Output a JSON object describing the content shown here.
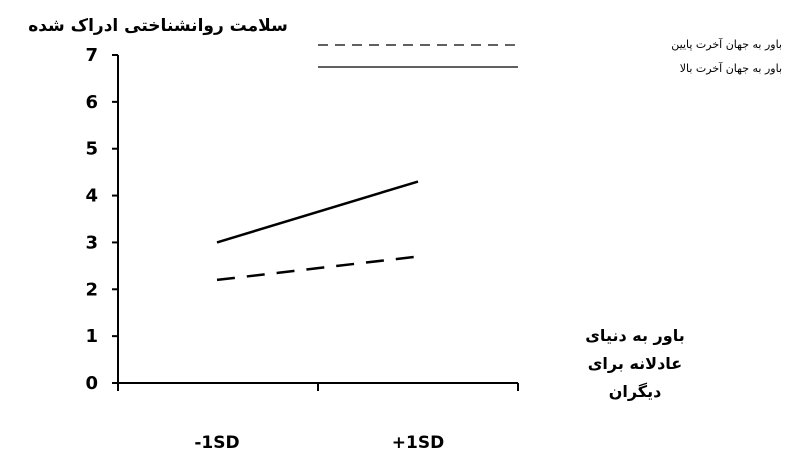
{
  "chart_data": {
    "type": "line",
    "ylabel": "سلامت روانشناختی ادراک شده",
    "xlabel": "باور به دنیای عادلانه برای دیگران",
    "categories": [
      "-1SD",
      "+1SD"
    ],
    "y_ticks": [
      "0",
      "1",
      "2",
      "3",
      "4",
      "5",
      "6",
      "7"
    ],
    "ylim": [
      0,
      7
    ],
    "grid": false,
    "legend_position": "top-right",
    "series": [
      {
        "name": "باور به جهان آخرت پایین",
        "style": "dashed",
        "color": "#000000",
        "values": [
          2.2,
          2.7
        ]
      },
      {
        "name": "باور به جهان آخرت بالا",
        "style": "solid",
        "color": "#000000",
        "values": [
          3.0,
          4.3
        ]
      }
    ]
  }
}
